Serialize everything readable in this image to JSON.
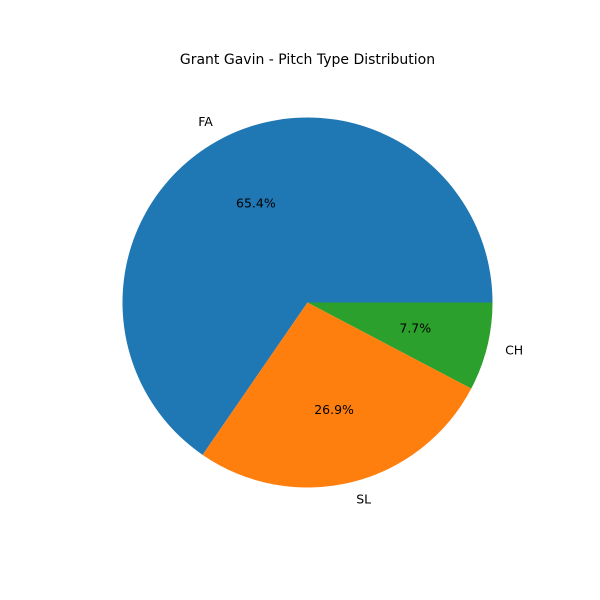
{
  "chart_data": {
    "type": "pie",
    "title": "Grant Gavin - Pitch Type Distribution",
    "start_angle_deg": 0,
    "direction": "counterclockwise",
    "slices": [
      {
        "label": "FA",
        "value": 65.4,
        "pct_label": "65.4%",
        "color": "#1f77b4"
      },
      {
        "label": "SL",
        "value": 26.9,
        "pct_label": "26.9%",
        "color": "#ff7f0e"
      },
      {
        "label": "CH",
        "value": 7.7,
        "pct_label": "7.7%",
        "color": "#2ca02c"
      }
    ]
  }
}
